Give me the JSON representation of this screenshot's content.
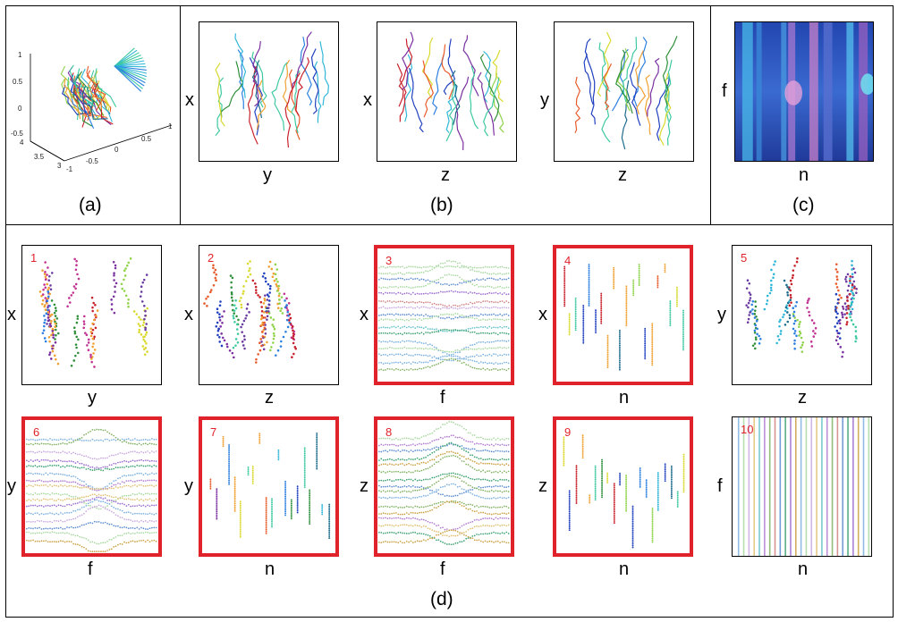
{
  "captions": {
    "a": "(a)",
    "b": "(b)",
    "c": "(c)",
    "d": "(d)"
  },
  "panel_a_ticks": {
    "z_top": "1",
    "z_mid": "0.5",
    "z_zero": "0",
    "z_neg": "-0.5",
    "y_4": "4",
    "y_35": "3.5",
    "y_3": "3",
    "y_neg1": "-1",
    "y_neg05": "-0.5",
    "x_0": "0",
    "x_05": "0.5",
    "x_1": "1"
  },
  "row_b": [
    {
      "ylabel": "x",
      "xlabel": "y"
    },
    {
      "ylabel": "x",
      "xlabel": "z"
    },
    {
      "ylabel": "y",
      "xlabel": "z"
    }
  ],
  "row_c": {
    "ylabel": "f",
    "xlabel": "n"
  },
  "row_d": [
    {
      "num": "1",
      "ylabel": "x",
      "xlabel": "y",
      "highlight": false
    },
    {
      "num": "2",
      "ylabel": "x",
      "xlabel": "z",
      "highlight": false
    },
    {
      "num": "3",
      "ylabel": "x",
      "xlabel": "f",
      "highlight": true
    },
    {
      "num": "4",
      "ylabel": "x",
      "xlabel": "n",
      "highlight": true
    },
    {
      "num": "5",
      "ylabel": "y",
      "xlabel": "z",
      "highlight": false
    },
    {
      "num": "6",
      "ylabel": "y",
      "xlabel": "f",
      "highlight": true
    },
    {
      "num": "7",
      "ylabel": "y",
      "xlabel": "n",
      "highlight": true
    },
    {
      "num": "8",
      "ylabel": "z",
      "xlabel": "f",
      "highlight": true
    },
    {
      "num": "9",
      "ylabel": "z",
      "xlabel": "n",
      "highlight": true
    },
    {
      "num": "10",
      "ylabel": "f",
      "xlabel": "n",
      "highlight": false
    }
  ],
  "colors": {
    "highlight": "#e0232a",
    "heatmap_base": "#2a4fb8"
  }
}
